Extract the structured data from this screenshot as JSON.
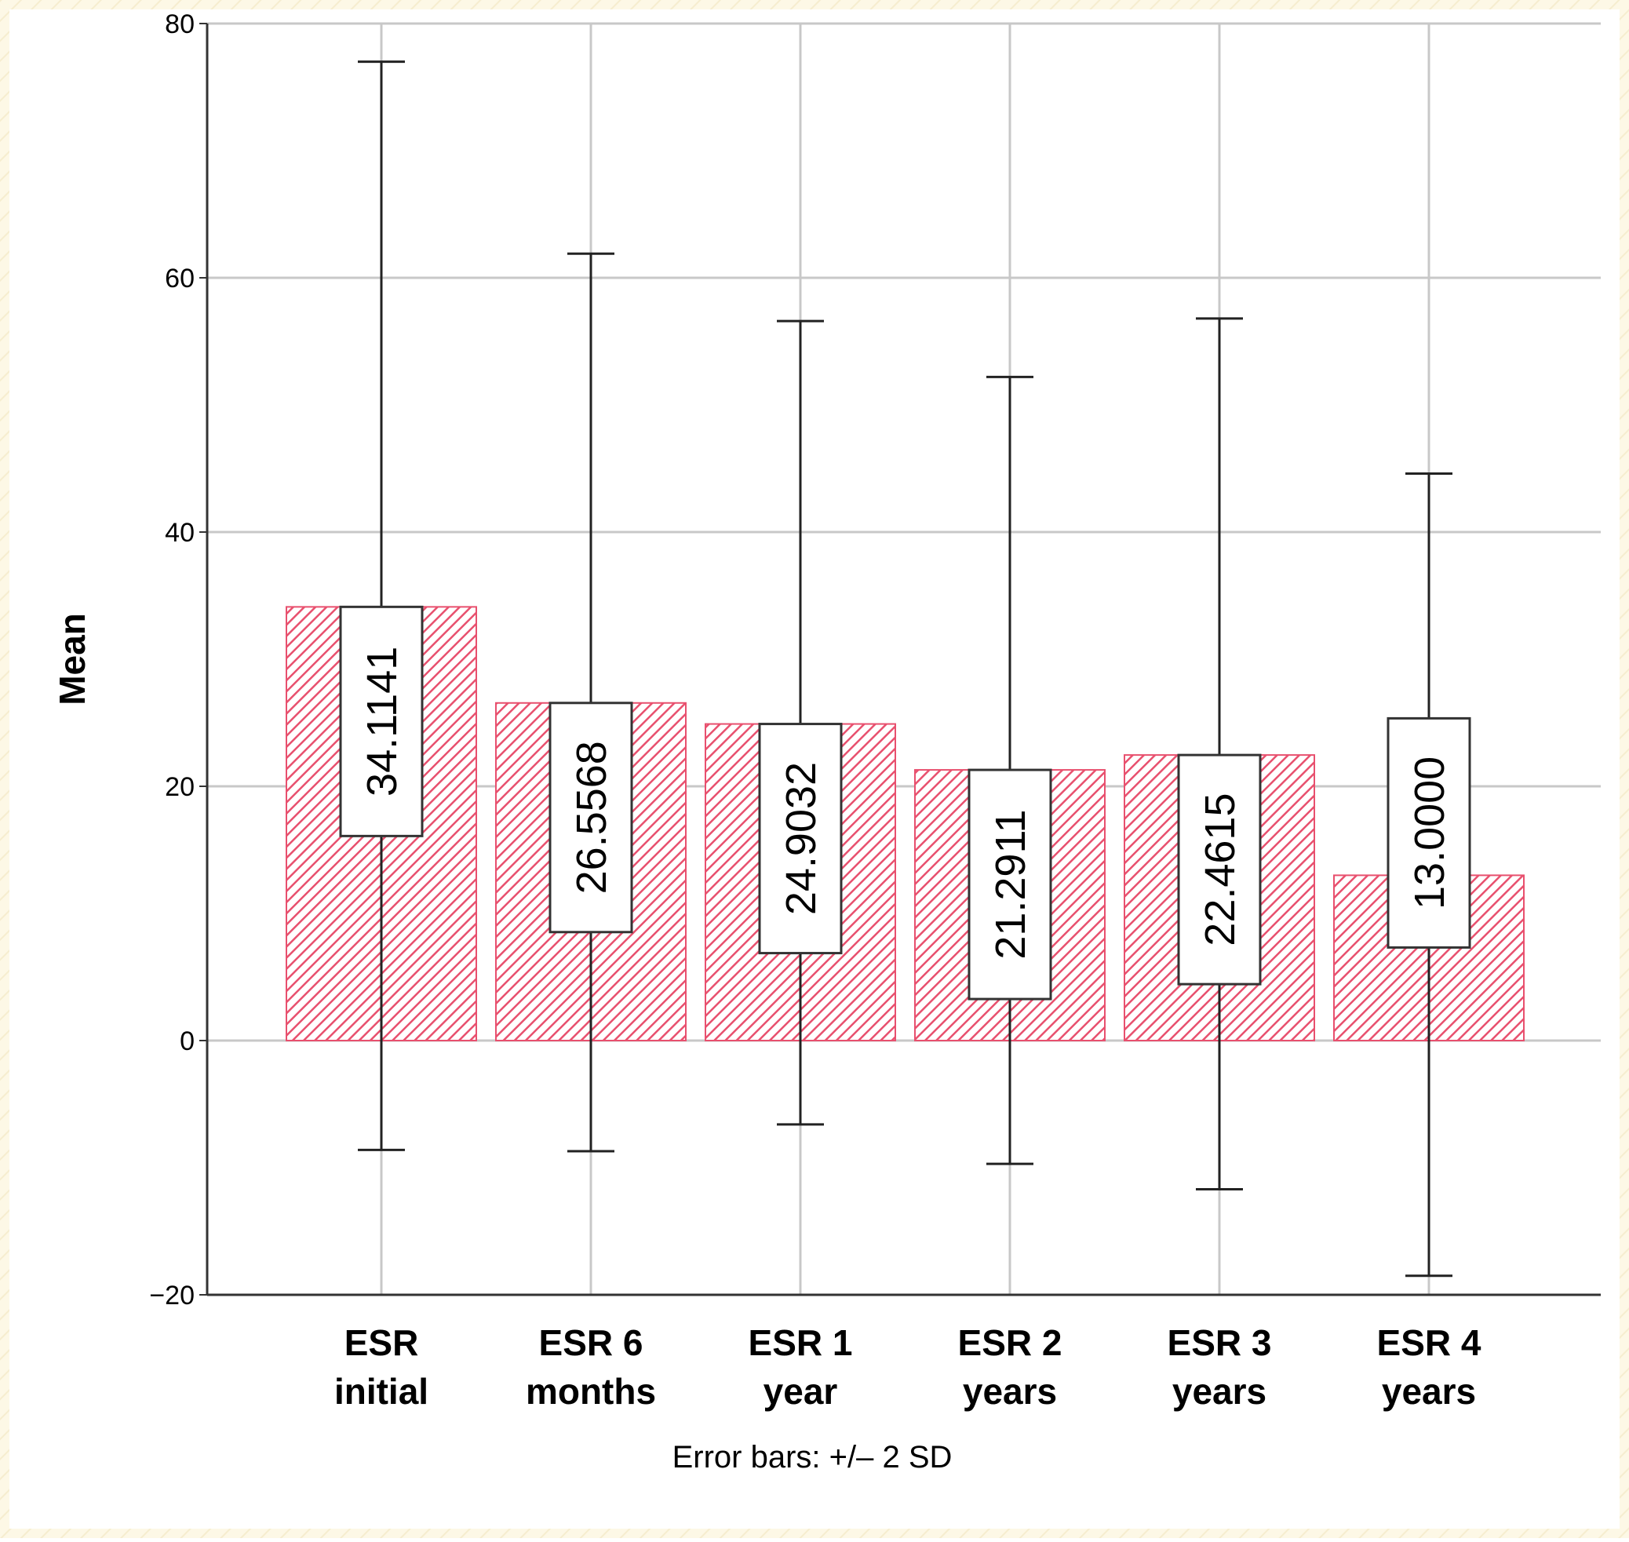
{
  "chart_data": {
    "type": "bar",
    "categories": [
      [
        "ESR",
        "initial"
      ],
      [
        "ESR 6",
        "months"
      ],
      [
        "ESR 1",
        "year"
      ],
      [
        "ESR 2",
        "years"
      ],
      [
        "ESR 3",
        "years"
      ],
      [
        "ESR 4",
        "years"
      ]
    ],
    "values": [
      34.1141,
      26.5568,
      24.9032,
      21.2911,
      22.4615,
      13.0
    ],
    "value_labels": [
      "34.1141",
      "26.5568",
      "24.9032",
      "21.2911",
      "22.4615",
      "13.0000"
    ],
    "error_bars": [
      {
        "low": -8.6,
        "high": 77.0
      },
      {
        "low": -8.7,
        "high": 61.9
      },
      {
        "low": -6.6,
        "high": 56.6
      },
      {
        "low": -9.7,
        "high": 52.2
      },
      {
        "low": -11.7,
        "high": 56.8
      },
      {
        "low": -18.5,
        "high": 44.6
      }
    ],
    "error_bar_note": "Error bars: +/– 2 SD",
    "ylabel": "Mean",
    "xlabel": "",
    "ylim": [
      -20,
      80
    ],
    "yticks": [
      -20,
      0,
      20,
      40,
      60,
      80
    ],
    "ytick_labels": [
      "−20",
      "0",
      "20",
      "40",
      "60",
      "80"
    ],
    "grid": true,
    "colors": {
      "background": "#fdf8e6",
      "plot_background": "#ffffff",
      "bar_stroke": "#e8506e",
      "bar_hatch": "#e8506e",
      "error_bar": "#222222",
      "grid": "#c8c8c8",
      "axis": "#333333"
    }
  }
}
